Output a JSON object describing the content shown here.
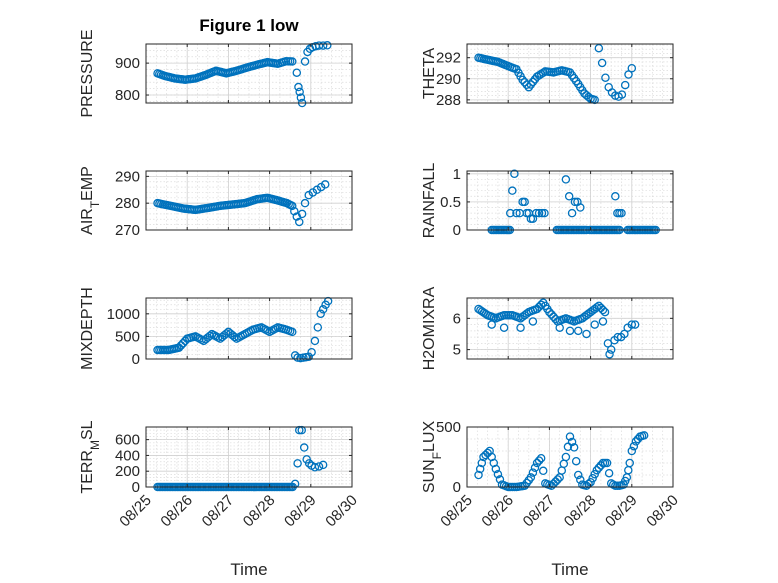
{
  "figure_title": "Figure 1 low",
  "colors": {
    "marker": "#0072BD",
    "axis": "#262626",
    "grid": "#d9d9d9"
  },
  "x_tick_labels": [
    "08/25",
    "08/26",
    "08/27",
    "08/28",
    "08/29",
    "08/30"
  ],
  "chart_data": [
    {
      "type": "scatter",
      "ylabel": "PRESSURE",
      "title": "Figure 1 low",
      "xlabel": "",
      "xlim": [
        0,
        5
      ],
      "ylim": [
        775,
        960
      ],
      "yticks": [
        800,
        900
      ],
      "grid": true,
      "anchors": [
        [
          0.28,
          868
        ],
        [
          0.45,
          860
        ],
        [
          0.7,
          852
        ],
        [
          0.95,
          848
        ],
        [
          1.2,
          852
        ],
        [
          1.45,
          863
        ],
        [
          1.7,
          876
        ],
        [
          1.95,
          868
        ],
        [
          2.2,
          876
        ],
        [
          2.45,
          886
        ],
        [
          2.7,
          895
        ],
        [
          2.95,
          903
        ],
        [
          3.2,
          898
        ],
        [
          3.4,
          906
        ],
        [
          3.55,
          905
        ]
      ],
      "extra_points": [
        [
          3.66,
          870
        ],
        [
          3.7,
          825
        ],
        [
          3.73,
          810
        ],
        [
          3.76,
          792
        ],
        [
          3.79,
          775
        ],
        [
          3.86,
          905
        ],
        [
          3.92,
          935
        ],
        [
          3.98,
          945
        ],
        [
          4.04,
          950
        ],
        [
          4.12,
          953
        ],
        [
          4.2,
          955
        ],
        [
          4.3,
          955
        ],
        [
          4.4,
          956
        ]
      ]
    },
    {
      "type": "scatter",
      "ylabel": "THETA",
      "xlabel": "",
      "xlim": [
        0,
        5
      ],
      "ylim": [
        287.7,
        293.3
      ],
      "yticks": [
        288,
        290,
        292
      ],
      "grid": true,
      "anchors": [
        [
          0.28,
          292
        ],
        [
          0.5,
          291.8
        ],
        [
          0.75,
          291.6
        ],
        [
          1.0,
          291.2
        ],
        [
          1.2,
          290.9
        ],
        [
          1.35,
          289.9
        ],
        [
          1.5,
          289.2
        ],
        [
          1.7,
          290.2
        ],
        [
          1.9,
          290.7
        ],
        [
          2.1,
          290.6
        ],
        [
          2.3,
          290.8
        ],
        [
          2.5,
          290.6
        ],
        [
          2.7,
          289.5
        ],
        [
          2.85,
          288.6
        ],
        [
          3.0,
          288.1
        ],
        [
          3.1,
          288.0
        ]
      ],
      "extra_points": [
        [
          3.2,
          292.9
        ],
        [
          3.28,
          291.5
        ],
        [
          3.36,
          290.1
        ],
        [
          3.44,
          289.2
        ],
        [
          3.52,
          288.7
        ],
        [
          3.6,
          288.4
        ],
        [
          3.68,
          288.3
        ],
        [
          3.76,
          288.5
        ],
        [
          3.84,
          289.4
        ],
        [
          3.92,
          290.4
        ],
        [
          4.0,
          291
        ]
      ]
    },
    {
      "type": "scatter",
      "ylabel": "AIR_TEMP",
      "xlabel": "",
      "xlim": [
        0,
        5
      ],
      "ylim": [
        270,
        292
      ],
      "yticks": [
        270,
        280,
        290
      ],
      "grid": true,
      "anchors": [
        [
          0.28,
          280
        ],
        [
          0.6,
          279
        ],
        [
          0.9,
          278
        ],
        [
          1.2,
          277.5
        ],
        [
          1.5,
          278.2
        ],
        [
          1.8,
          279
        ],
        [
          2.1,
          279.5
        ],
        [
          2.4,
          280
        ],
        [
          2.7,
          281.5
        ],
        [
          2.95,
          282
        ],
        [
          3.2,
          281
        ],
        [
          3.42,
          280
        ],
        [
          3.55,
          279
        ]
      ],
      "extra_points": [
        [
          3.6,
          277
        ],
        [
          3.66,
          275
        ],
        [
          3.72,
          273
        ],
        [
          3.79,
          276
        ],
        [
          3.86,
          280
        ],
        [
          3.95,
          283
        ],
        [
          4.05,
          284
        ],
        [
          4.15,
          285
        ],
        [
          4.25,
          286
        ],
        [
          4.35,
          287
        ]
      ]
    },
    {
      "type": "scatter",
      "ylabel": "RAINFALL",
      "xlabel": "",
      "xlim": [
        0,
        5
      ],
      "ylim": [
        0,
        1.05
      ],
      "yticks": [
        0,
        0.5,
        1
      ],
      "grid": true,
      "zero_runs": [
        [
          0.6,
          1.05
        ],
        [
          2.18,
          2.9
        ],
        [
          2.98,
          3.7
        ],
        [
          3.9,
          4.6
        ]
      ],
      "extra_points": [
        [
          1.05,
          0.3
        ],
        [
          1.1,
          0.7
        ],
        [
          1.15,
          1.0
        ],
        [
          1.2,
          0.3
        ],
        [
          1.28,
          0.3
        ],
        [
          1.35,
          0.5
        ],
        [
          1.4,
          0.5
        ],
        [
          1.45,
          0.3
        ],
        [
          1.5,
          0.3
        ],
        [
          1.55,
          0.2
        ],
        [
          1.6,
          0.2
        ],
        [
          1.68,
          0.3
        ],
        [
          1.75,
          0.3
        ],
        [
          1.82,
          0.3
        ],
        [
          1.88,
          0.3
        ],
        [
          2.4,
          0.9
        ],
        [
          2.48,
          0.6
        ],
        [
          2.55,
          0.3
        ],
        [
          2.62,
          0.5
        ],
        [
          2.68,
          0.5
        ],
        [
          2.75,
          0.4
        ],
        [
          3.6,
          0.6
        ],
        [
          3.65,
          0.3
        ],
        [
          3.7,
          0.3
        ],
        [
          3.75,
          0.3
        ]
      ]
    },
    {
      "type": "scatter",
      "ylabel": "MIXDEPTH",
      "xlabel": "",
      "xlim": [
        0,
        5
      ],
      "ylim": [
        0,
        1350
      ],
      "yticks": [
        0,
        500,
        1000
      ],
      "grid": true,
      "anchors": [
        [
          0.28,
          200
        ],
        [
          0.55,
          200
        ],
        [
          0.8,
          250
        ],
        [
          1.0,
          450
        ],
        [
          1.2,
          500
        ],
        [
          1.4,
          400
        ],
        [
          1.6,
          550
        ],
        [
          1.8,
          450
        ],
        [
          2.0,
          600
        ],
        [
          2.2,
          450
        ],
        [
          2.4,
          550
        ],
        [
          2.6,
          650
        ],
        [
          2.8,
          700
        ],
        [
          3.0,
          600
        ],
        [
          3.2,
          700
        ],
        [
          3.4,
          650
        ],
        [
          3.55,
          600
        ]
      ],
      "extra_points": [
        [
          3.62,
          80
        ],
        [
          3.68,
          30
        ],
        [
          3.75,
          20
        ],
        [
          3.82,
          30
        ],
        [
          3.88,
          40
        ],
        [
          3.95,
          50
        ],
        [
          4.02,
          150
        ],
        [
          4.1,
          400
        ],
        [
          4.17,
          700
        ],
        [
          4.24,
          1000
        ],
        [
          4.3,
          1100
        ],
        [
          4.36,
          1200
        ],
        [
          4.42,
          1280
        ]
      ]
    },
    {
      "type": "scatter",
      "ylabel": "H2OMIXRA",
      "xlabel": "",
      "xlim": [
        0,
        5
      ],
      "ylim": [
        4.7,
        6.65
      ],
      "yticks": [
        5,
        6
      ],
      "grid": true,
      "anchors": [
        [
          0.28,
          6.3
        ],
        [
          0.5,
          6.1
        ],
        [
          0.7,
          6.0
        ],
        [
          0.9,
          6.1
        ],
        [
          1.1,
          6.1
        ],
        [
          1.3,
          6.0
        ],
        [
          1.5,
          6.2
        ],
        [
          1.7,
          6.3
        ],
        [
          1.85,
          6.5
        ],
        [
          2.0,
          6.2
        ],
        [
          2.2,
          5.9
        ],
        [
          2.4,
          6.0
        ],
        [
          2.6,
          5.9
        ],
        [
          2.8,
          6.0
        ],
        [
          3.0,
          6.2
        ],
        [
          3.2,
          6.4
        ],
        [
          3.35,
          6.2
        ]
      ],
      "extra_points": [
        [
          0.6,
          5.8
        ],
        [
          0.9,
          5.7
        ],
        [
          1.3,
          5.7
        ],
        [
          1.6,
          5.9
        ],
        [
          2.25,
          5.7
        ],
        [
          2.5,
          5.6
        ],
        [
          2.7,
          5.6
        ],
        [
          2.9,
          5.5
        ],
        [
          3.1,
          5.8
        ],
        [
          3.3,
          5.9
        ],
        [
          3.42,
          5.2
        ],
        [
          3.46,
          4.85
        ],
        [
          3.5,
          5.0
        ],
        [
          3.58,
          5.3
        ],
        [
          3.66,
          5.4
        ],
        [
          3.74,
          5.4
        ],
        [
          3.82,
          5.5
        ],
        [
          3.9,
          5.7
        ],
        [
          4.0,
          5.8
        ],
        [
          4.08,
          5.8
        ]
      ]
    },
    {
      "type": "scatter",
      "ylabel": "TERR_MSL",
      "xlabel": "Time",
      "xlim": [
        0,
        5
      ],
      "ylim": [
        0,
        760
      ],
      "yticks": [
        0,
        200,
        400,
        600
      ],
      "grid": true,
      "zero_runs": [
        [
          0.28,
          3.58
        ]
      ],
      "extra_points": [
        [
          3.62,
          40
        ],
        [
          3.68,
          300
        ],
        [
          3.72,
          720
        ],
        [
          3.78,
          720
        ],
        [
          3.84,
          500
        ],
        [
          3.9,
          350
        ],
        [
          3.96,
          300
        ],
        [
          4.02,
          270
        ],
        [
          4.1,
          250
        ],
        [
          4.2,
          260
        ],
        [
          4.3,
          280
        ]
      ]
    },
    {
      "type": "scatter",
      "ylabel": "SUN_FLUX",
      "xlabel": "Time",
      "xlim": [
        0,
        5
      ],
      "ylim": [
        0,
        500
      ],
      "yticks": [
        0,
        500
      ],
      "grid": true,
      "anchors": [
        [
          0.28,
          100
        ],
        [
          0.4,
          250
        ],
        [
          0.55,
          300
        ],
        [
          0.7,
          150
        ],
        [
          0.85,
          20
        ],
        [
          1.0,
          0
        ],
        [
          1.2,
          0
        ],
        [
          1.4,
          10
        ],
        [
          1.55,
          80
        ],
        [
          1.7,
          200
        ],
        [
          1.8,
          240
        ],
        [
          1.9,
          30
        ],
        [
          2.05,
          10
        ],
        [
          2.25,
          80
        ],
        [
          2.4,
          250
        ],
        [
          2.5,
          420
        ],
        [
          2.6,
          330
        ],
        [
          2.7,
          100
        ],
        [
          2.8,
          20
        ],
        [
          2.9,
          10
        ],
        [
          3.0,
          40
        ],
        [
          3.15,
          140
        ],
        [
          3.3,
          200
        ],
        [
          3.4,
          200
        ],
        [
          3.5,
          30
        ],
        [
          3.6,
          10
        ],
        [
          3.7,
          10
        ],
        [
          3.8,
          20
        ],
        [
          3.88,
          80
        ],
        [
          3.95,
          200
        ],
        [
          4.0,
          300
        ],
        [
          4.1,
          380
        ],
        [
          4.2,
          420
        ],
        [
          4.3,
          430
        ]
      ]
    }
  ]
}
